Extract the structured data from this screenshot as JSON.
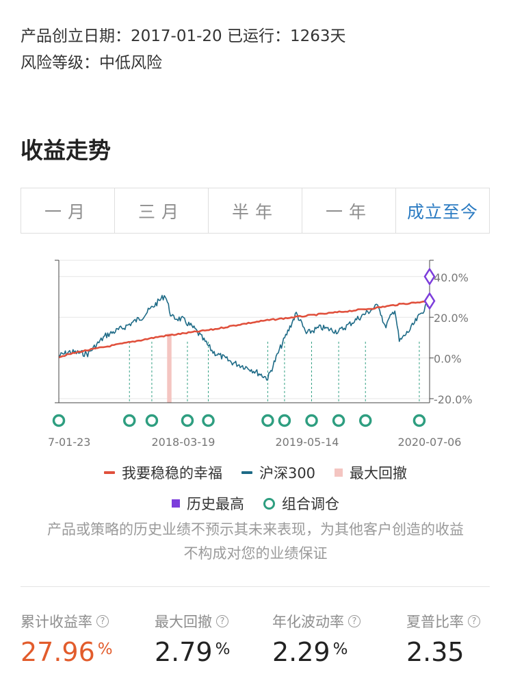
{
  "product": {
    "established_label": "产品创立日期：",
    "established_date": "2017-01-20",
    "running_label": "已运行：",
    "running_days": "1263天",
    "risk_label": "风险等级：",
    "risk_value": "中低风险"
  },
  "section_title": "收益走势",
  "tabs": [
    {
      "label": "一月",
      "active": false
    },
    {
      "label": "三月",
      "active": false
    },
    {
      "label": "半年",
      "active": false
    },
    {
      "label": "一年",
      "active": false
    },
    {
      "label": "成立至今",
      "active": true
    }
  ],
  "colors": {
    "portfolio": "#e0503c",
    "index": "#1d6a86",
    "drawdown": "#f4c5c1",
    "history_high": "#7c3ddb",
    "rebalance": "#2e9e80",
    "accent": "#e25c2c",
    "active_tab": "#2b7bc2"
  },
  "chart_data": {
    "type": "line",
    "x_tick_labels": [
      "7-01-23",
      "2018-03-19",
      "2019-05-14",
      "2020-07-06"
    ],
    "y_tick_labels": [
      "40.0%",
      "20.0%",
      "0.0%",
      "-20.0%"
    ],
    "ylim": [
      -22,
      48
    ],
    "grid": true,
    "series": [
      {
        "name": "我要稳稳的幸福",
        "x": [
          "2017-01-23",
          "2017-04-01",
          "2017-07-01",
          "2017-10-01",
          "2018-01-01",
          "2018-03-19",
          "2018-07-01",
          "2018-10-01",
          "2019-01-01",
          "2019-04-01",
          "2019-07-01",
          "2019-10-01",
          "2020-01-01",
          "2020-04-01",
          "2020-07-06"
        ],
        "values": [
          0.5,
          3,
          5.5,
          8,
          10.5,
          12,
          14,
          16.5,
          18.5,
          20,
          21.5,
          23,
          24.5,
          26.5,
          27.96
        ]
      },
      {
        "name": "沪深300",
        "x": [
          "2017-01-23",
          "2017-03-01",
          "2017-05-01",
          "2017-07-01",
          "2017-09-01",
          "2017-11-01",
          "2018-01-20",
          "2018-02-10",
          "2018-03-19",
          "2018-05-01",
          "2018-07-01",
          "2018-09-01",
          "2018-11-01",
          "2019-01-03",
          "2019-02-15",
          "2019-04-10",
          "2019-05-14",
          "2019-07-01",
          "2019-09-01",
          "2019-11-01",
          "2020-01-15",
          "2020-02-05",
          "2020-03-10",
          "2020-03-25",
          "2020-05-01",
          "2020-07-06"
        ],
        "values": [
          1,
          3,
          2,
          11,
          15,
          20,
          31,
          20,
          19,
          14,
          3,
          -2,
          -5,
          -10,
          5,
          22,
          12,
          15,
          13,
          19,
          26,
          15,
          24,
          8,
          14,
          28
        ]
      }
    ],
    "max_drawdown": {
      "name": "最大回撤",
      "x_start": "2018-01-26",
      "x_end": "2018-02-10"
    },
    "history_high": {
      "name": "历史最高",
      "x": "2020-07-06",
      "values": [
        40,
        28
      ]
    },
    "rebalance": {
      "name": "组合调仓",
      "x": [
        "2017-01-23",
        "2017-09-20",
        "2017-12-05",
        "2018-04-05",
        "2018-06-15",
        "2019-01-03",
        "2019-03-01",
        "2019-06-01",
        "2019-09-01",
        "2019-12-01",
        "2020-06-01"
      ]
    }
  },
  "disclaimer": "产品或策略的历史业绩不预示其未来表现，为其他客户创造的收益不构成对您的业绩保证",
  "stats": [
    {
      "label": "累计收益率",
      "value": "27.96",
      "unit": "%",
      "accent": true
    },
    {
      "label": "最大回撤",
      "value": "2.79",
      "unit": "%",
      "accent": false
    },
    {
      "label": "年化波动率",
      "value": "2.29",
      "unit": "%",
      "accent": false
    },
    {
      "label": "夏普比率",
      "value": "2.35",
      "unit": "",
      "accent": false
    }
  ],
  "help_icon_glyph": "?"
}
